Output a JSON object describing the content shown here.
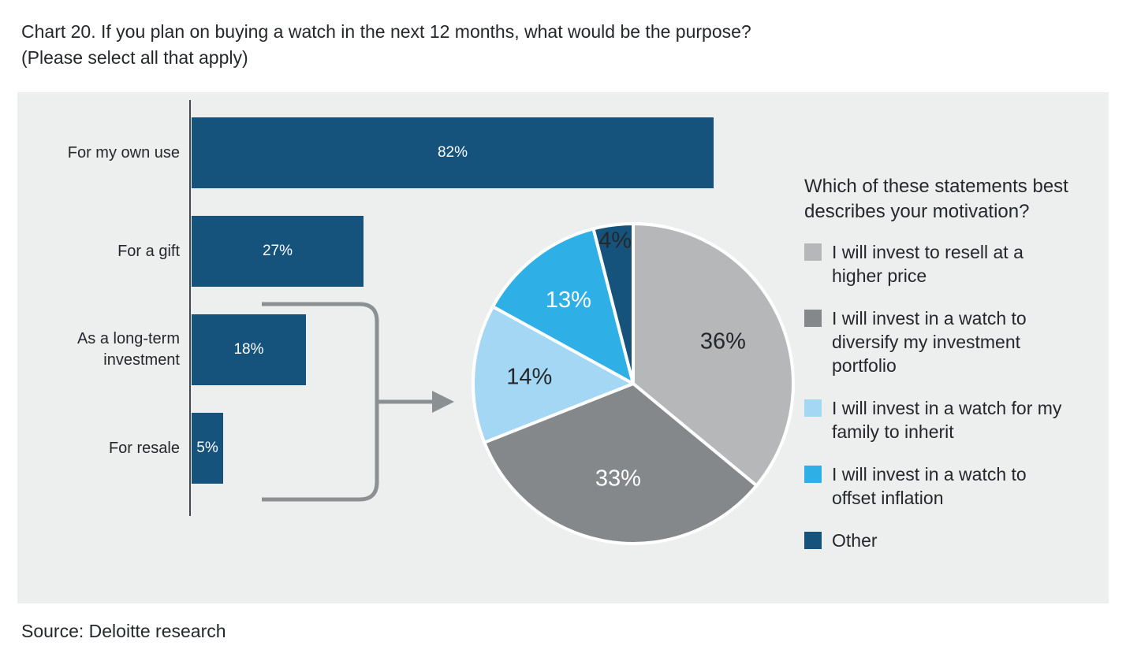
{
  "title_line1": "Chart 20. If you plan on buying a watch in the next 12 months, what would be the purpose?",
  "title_line2": "(Please select all that apply)",
  "source": "Source: Deloitte research",
  "colors": {
    "bar": "#15537d",
    "panel_bg": "#edeeee",
    "axis": "#41474c",
    "connector": "#8b9093",
    "ink": "#25282b"
  },
  "chart_data": [
    {
      "type": "bar",
      "orientation": "horizontal",
      "categories": [
        "For my own use",
        "For a gift",
        "As a long-term investment",
        "For resale"
      ],
      "values": [
        82,
        27,
        18,
        5
      ],
      "value_labels": [
        "82%",
        "27%",
        "18%",
        "5%"
      ],
      "unit": "%",
      "xlim": [
        0,
        100
      ],
      "bar_color": "#15537d",
      "grid": false
    },
    {
      "type": "pie",
      "title": "Which of these statements best describes your motivation?",
      "labels": [
        "I will invest to resell at a higher price",
        "I will invest in a watch to diversify my investment portfolio",
        "I will invest in a watch for my family to inherit",
        "I will invest in a watch to offset inflation",
        "Other"
      ],
      "values": [
        36,
        33,
        14,
        13,
        4
      ],
      "value_labels": [
        "36%",
        "33%",
        "14%",
        "13%",
        "4%"
      ],
      "colors": [
        "#b5b7b8",
        "#85888b",
        "#a3d7f3",
        "#2eb0e6",
        "#15537d"
      ],
      "label_text_colors": [
        "#25282b",
        "#ffffff",
        "#25282b",
        "#ffffff",
        "#25282b"
      ],
      "start_angle": "top",
      "direction": "clockwise",
      "legend_position": "right"
    }
  ]
}
